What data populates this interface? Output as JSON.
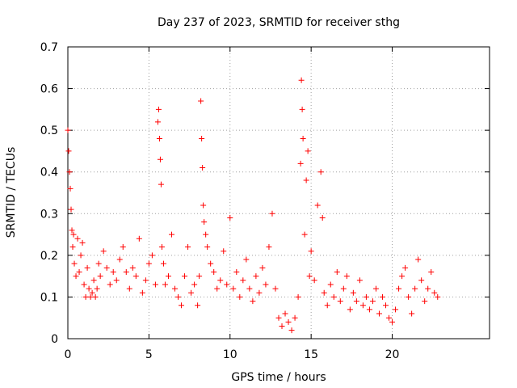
{
  "chart_data": {
    "type": "scatter",
    "title": "Day 237 of 2023, SRMTID for receiver sthg",
    "xlabel": "GPS time / hours",
    "ylabel": "SRMTID / TECUs",
    "xlim": [
      0,
      26
    ],
    "ylim": [
      0,
      0.7
    ],
    "xticks": [
      0,
      5,
      10,
      15,
      20
    ],
    "yticks": [
      0,
      0.1,
      0.2,
      0.3,
      0.4,
      0.5,
      0.6,
      0.7
    ],
    "grid": true,
    "marker": "plus",
    "color": "#ff0000",
    "series": [
      {
        "name": "SRMTID",
        "x": [
          0.0,
          0.05,
          0.1,
          0.15,
          0.2,
          0.25,
          0.3,
          0.35,
          0.4,
          0.5,
          0.6,
          0.7,
          0.8,
          0.9,
          1.0,
          1.1,
          1.2,
          1.3,
          1.4,
          1.5,
          1.6,
          1.7,
          1.8,
          1.9,
          2.0,
          2.2,
          2.4,
          2.6,
          2.8,
          3.0,
          3.2,
          3.4,
          3.6,
          3.8,
          4.0,
          4.2,
          4.4,
          4.6,
          4.8,
          5.0,
          5.2,
          5.4,
          5.55,
          5.6,
          5.65,
          5.7,
          5.75,
          5.8,
          5.9,
          6.0,
          6.2,
          6.4,
          6.6,
          6.8,
          7.0,
          7.2,
          7.4,
          7.6,
          7.8,
          8.0,
          8.1,
          8.2,
          8.25,
          8.3,
          8.35,
          8.4,
          8.5,
          8.6,
          8.8,
          9.0,
          9.2,
          9.4,
          9.6,
          9.8,
          10.0,
          10.2,
          10.4,
          10.6,
          10.8,
          11.0,
          11.2,
          11.4,
          11.6,
          11.8,
          12.0,
          12.2,
          12.4,
          12.6,
          12.8,
          13.0,
          13.2,
          13.4,
          13.6,
          13.8,
          14.0,
          14.2,
          14.35,
          14.4,
          14.45,
          14.5,
          14.6,
          14.7,
          14.8,
          14.9,
          15.0,
          15.2,
          15.4,
          15.6,
          15.7,
          15.8,
          16.0,
          16.2,
          16.4,
          16.6,
          16.8,
          17.0,
          17.2,
          17.4,
          17.6,
          17.8,
          18.0,
          18.2,
          18.4,
          18.6,
          18.8,
          19.0,
          19.2,
          19.4,
          19.6,
          19.8,
          20.0,
          20.2,
          20.4,
          20.6,
          20.8,
          21.0,
          21.2,
          21.4,
          21.6,
          21.8,
          22.0,
          22.2,
          22.4,
          22.6,
          22.8
        ],
        "y": [
          0.5,
          0.45,
          0.4,
          0.36,
          0.31,
          0.26,
          0.22,
          0.25,
          0.18,
          0.15,
          0.24,
          0.16,
          0.2,
          0.23,
          0.13,
          0.1,
          0.17,
          0.12,
          0.1,
          0.11,
          0.14,
          0.1,
          0.12,
          0.18,
          0.15,
          0.21,
          0.17,
          0.13,
          0.16,
          0.14,
          0.19,
          0.22,
          0.16,
          0.12,
          0.17,
          0.15,
          0.24,
          0.11,
          0.14,
          0.18,
          0.2,
          0.13,
          0.52,
          0.55,
          0.48,
          0.43,
          0.37,
          0.22,
          0.18,
          0.13,
          0.15,
          0.25,
          0.12,
          0.1,
          0.08,
          0.15,
          0.22,
          0.11,
          0.13,
          0.08,
          0.15,
          0.57,
          0.48,
          0.41,
          0.32,
          0.28,
          0.25,
          0.22,
          0.18,
          0.16,
          0.12,
          0.14,
          0.21,
          0.13,
          0.29,
          0.12,
          0.16,
          0.1,
          0.14,
          0.19,
          0.12,
          0.09,
          0.15,
          0.11,
          0.17,
          0.13,
          0.22,
          0.3,
          0.12,
          0.05,
          0.03,
          0.06,
          0.04,
          0.02,
          0.05,
          0.1,
          0.42,
          0.62,
          0.55,
          0.48,
          0.25,
          0.38,
          0.45,
          0.15,
          0.21,
          0.14,
          0.32,
          0.4,
          0.29,
          0.11,
          0.08,
          0.13,
          0.1,
          0.16,
          0.09,
          0.12,
          0.15,
          0.07,
          0.11,
          0.09,
          0.14,
          0.08,
          0.1,
          0.07,
          0.09,
          0.12,
          0.06,
          0.1,
          0.08,
          0.05,
          0.04,
          0.07,
          0.12,
          0.15,
          0.17,
          0.1,
          0.06,
          0.12,
          0.19,
          0.14,
          0.09,
          0.12,
          0.16,
          0.11,
          0.1
        ]
      }
    ]
  }
}
